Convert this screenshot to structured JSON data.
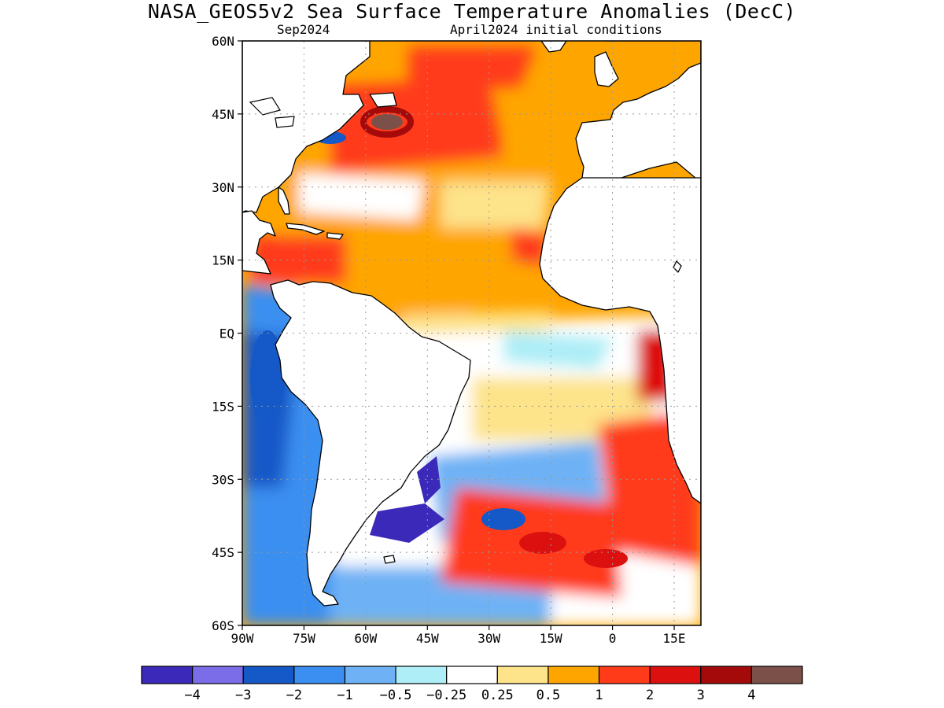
{
  "title": "NASA_GEOS5v2 Sea Surface Temperature Anomalies (DecC)",
  "subtitle_left": "Sep2024",
  "subtitle_right": "April2024 initial conditions",
  "lat_labels": [
    "60N",
    "45N",
    "30N",
    "15N",
    "EQ",
    "15S",
    "30S",
    "45S",
    "60S"
  ],
  "lon_labels": [
    "90W",
    "75W",
    "60W",
    "45W",
    "30W",
    "15W",
    "0",
    "15E"
  ],
  "colorbar": {
    "labels": [
      "-4",
      "-3",
      "-2",
      "-1",
      "-0.5",
      "-0.25",
      "0.25",
      "0.5",
      "1",
      "2",
      "3",
      "4"
    ],
    "colors": [
      "#3b29b9",
      "#7b6de8",
      "#1558c8",
      "#3a8ff0",
      "#6eb2f5",
      "#aeeef7",
      "#ffffff",
      "#fde38a",
      "#ffa500",
      "#ff3b1a",
      "#dd1010",
      "#a50a0a",
      "#7a5048"
    ]
  },
  "colors": {
    "land": "#ffffff",
    "coast": "#000000",
    "grid": "#999999"
  }
}
